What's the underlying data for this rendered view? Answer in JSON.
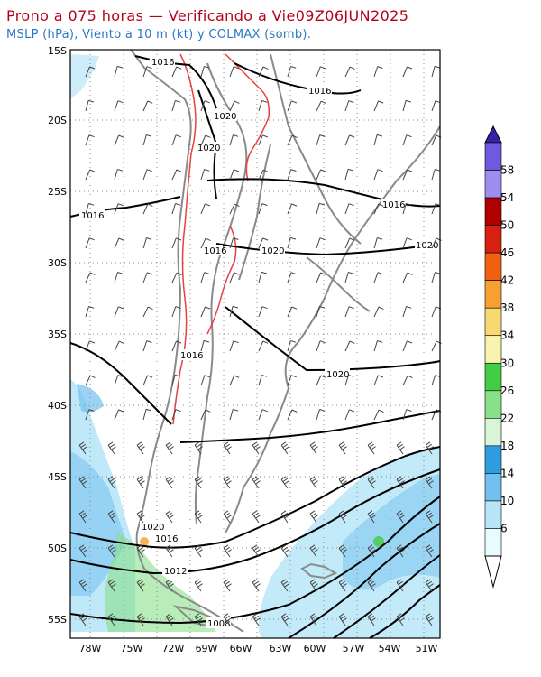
{
  "title": "Prono a 075 horas — Verificando a Vie09Z06JUN2025",
  "subtitle": "MSLP (hPa), Viento a 10 m (kt) y COLMAX (somb).",
  "colors": {
    "title": "#b8001a",
    "subtitle": "#2a78c4",
    "isobar": "#000000",
    "borders": "#8a8a8a",
    "topo_contour": "#e84040"
  },
  "lat_labels": [
    "15S",
    "20S",
    "25S",
    "30S",
    "35S",
    "40S",
    "45S",
    "50S",
    "55S"
  ],
  "lon_labels": [
    "78W",
    "75W",
    "72W",
    "69W",
    "66W",
    "63W",
    "60W",
    "57W",
    "54W",
    "51W"
  ],
  "isobar_labels": [
    "1016",
    "1016",
    "1020",
    "1020",
    "1016",
    "1016",
    "1020",
    "1020",
    "1016",
    "1020",
    "1016",
    "1020",
    "1016",
    "1012",
    "1008"
  ],
  "colorbar": {
    "ticks": [
      "58",
      "54",
      "50",
      "46",
      "42",
      "38",
      "34",
      "30",
      "26",
      "22",
      "18",
      "14",
      "10",
      "6"
    ],
    "colors": [
      "#6d5ae0",
      "#9d8ff0",
      "#b00000",
      "#d82010",
      "#f06010",
      "#f5a030",
      "#f8d870",
      "#f8f4b0",
      "#44cc44",
      "#88e088",
      "#d8f5d8",
      "#2e9ee0",
      "#72c0f0",
      "#b8e6f8",
      "#e8fbff"
    ]
  }
}
